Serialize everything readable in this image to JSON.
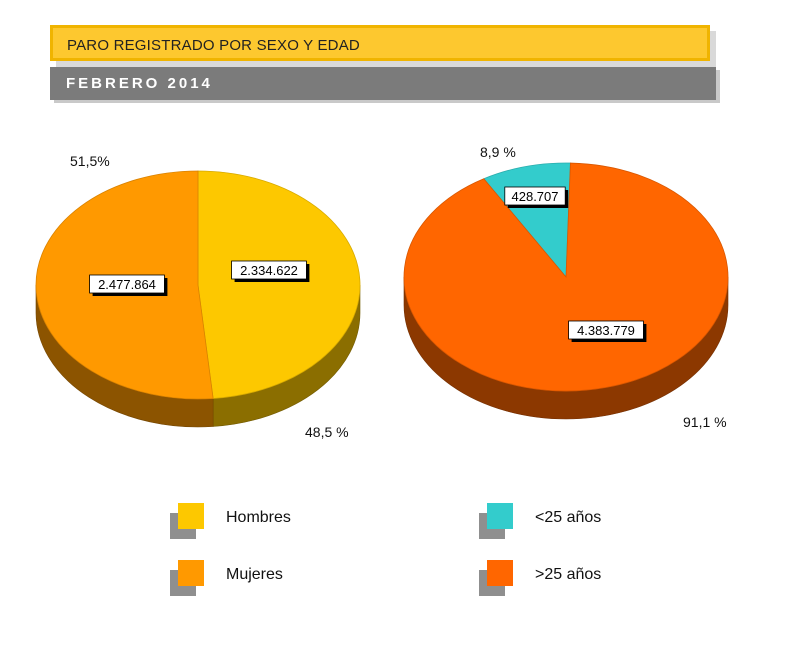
{
  "header": {
    "title": "PARO REGISTRADO POR SEXO Y EDAD",
    "subtitle": "FEBRERO  2014"
  },
  "chart_data": [
    {
      "type": "pie",
      "style": "3d",
      "categories": [
        "Hombres",
        "Mujeres"
      ],
      "values": [
        2334622,
        2477864
      ],
      "value_labels": [
        "2.334.622",
        "2.477.864"
      ],
      "percent_labels": [
        "48,5 %",
        "51,5%"
      ],
      "colors": [
        "#fdc800",
        "#ff9900"
      ]
    },
    {
      "type": "pie",
      "style": "3d",
      "categories": [
        "<25 años",
        ">25 años"
      ],
      "values": [
        428707,
        4383779
      ],
      "value_labels": [
        "428.707",
        "4.383.779"
      ],
      "percent_labels": [
        "8,9 %",
        "91,1 %"
      ],
      "colors": [
        "#33cccc",
        "#ff6600"
      ]
    }
  ],
  "legend": {
    "left": [
      {
        "label": "Hombres",
        "color": "#fdc800"
      },
      {
        "label": "Mujeres",
        "color": "#ff9900"
      }
    ],
    "right": [
      {
        "label": "<25 años",
        "color": "#33cccc"
      },
      {
        "label": ">25 años",
        "color": "#ff6600"
      }
    ]
  }
}
